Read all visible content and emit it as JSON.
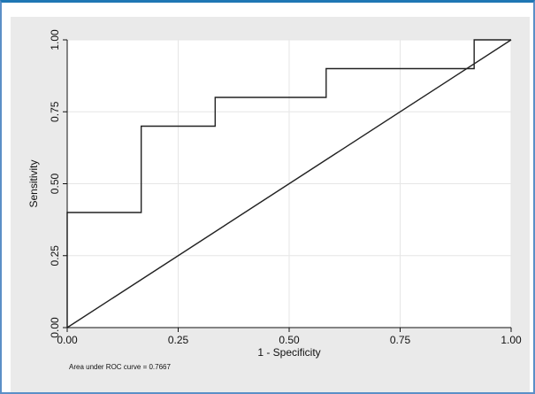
{
  "chart_data": {
    "type": "line",
    "title": "",
    "xlabel": "1 - Specificity",
    "ylabel": "Sensitivity",
    "xlim": [
      0,
      1
    ],
    "ylim": [
      0,
      1
    ],
    "x_ticks": [
      0,
      0.25,
      0.5,
      0.75,
      1
    ],
    "x_tick_labels": [
      "0.00",
      "0.25",
      "0.50",
      "0.75",
      "1.00"
    ],
    "y_ticks": [
      0,
      0.25,
      0.5,
      0.75,
      1
    ],
    "y_tick_labels": [
      "0.00",
      "0.25",
      "0.50",
      "0.75",
      "1.00"
    ],
    "grid": true,
    "series": [
      {
        "x": [
          0,
          0,
          0.1667,
          0.1667,
          0.3333,
          0.3333,
          0.5833,
          0.5833,
          0.9167,
          0.9167,
          1
        ],
        "y": [
          0,
          0.4,
          0.4,
          0.7,
          0.7,
          0.8,
          0.8,
          0.9,
          0.9,
          1,
          1
        ]
      },
      {
        "x": [
          0,
          1
        ],
        "y": [
          0,
          1
        ]
      }
    ],
    "annotations": [
      "Area under ROC curve = 0.7667"
    ]
  },
  "colors": {
    "frame_border": "#5b8fc7",
    "panel_background": "#eaeaea",
    "plot_background": "#ffffff",
    "line": "#222222",
    "grid": "#e6e6e6"
  }
}
